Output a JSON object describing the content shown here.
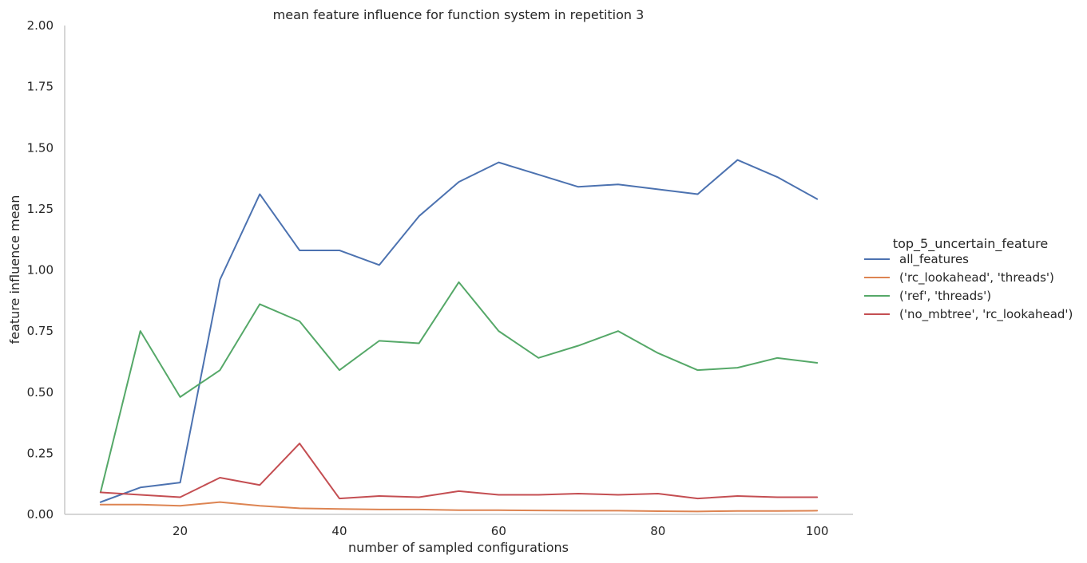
{
  "chart_data": {
    "type": "line",
    "title": "mean feature influence for function system in repetition 3",
    "xlabel": "number of sampled configurations",
    "ylabel": "feature influence mean",
    "xlim": [
      5.5,
      104.5
    ],
    "ylim": [
      0,
      2.0
    ],
    "x_ticks": [
      20,
      40,
      60,
      80,
      100
    ],
    "y_ticks": [
      0.0,
      0.25,
      0.5,
      0.75,
      1.0,
      1.25,
      1.5,
      1.75,
      2.0
    ],
    "y_tick_labels": [
      "0.00",
      "0.25",
      "0.50",
      "0.75",
      "1.00",
      "1.25",
      "1.50",
      "1.75",
      "2.00"
    ],
    "grid": false,
    "legend_title": "top_5_uncertain_feature",
    "legend_position": "right",
    "x": [
      10,
      15,
      20,
      25,
      30,
      35,
      40,
      45,
      50,
      55,
      60,
      65,
      70,
      75,
      80,
      85,
      90,
      95,
      100
    ],
    "series": [
      {
        "name": "all_features",
        "color": "#4c72b0",
        "values": [
          0.05,
          0.11,
          0.13,
          0.96,
          1.31,
          1.08,
          1.08,
          1.02,
          1.22,
          1.36,
          1.44,
          1.39,
          1.34,
          1.35,
          1.33,
          1.31,
          1.45,
          1.38,
          1.29
        ]
      },
      {
        "name": "('rc_lookahead', 'threads')",
        "color": "#dd8452",
        "values": [
          0.04,
          0.04,
          0.035,
          0.05,
          0.035,
          0.025,
          0.022,
          0.02,
          0.02,
          0.017,
          0.017,
          0.016,
          0.015,
          0.015,
          0.013,
          0.012,
          0.014,
          0.014,
          0.015
        ]
      },
      {
        "name": "('ref', 'threads')",
        "color": "#55a868",
        "values": [
          0.09,
          0.75,
          0.48,
          0.59,
          0.86,
          0.79,
          0.59,
          0.71,
          0.7,
          0.95,
          0.75,
          0.64,
          0.69,
          0.75,
          0.66,
          0.59,
          0.6,
          0.64,
          0.62
        ]
      },
      {
        "name": "('no_mbtree', 'rc_lookahead')",
        "color": "#c44e52",
        "values": [
          0.09,
          0.08,
          0.07,
          0.15,
          0.12,
          0.29,
          0.065,
          0.075,
          0.07,
          0.095,
          0.08,
          0.08,
          0.085,
          0.08,
          0.085,
          0.065,
          0.075,
          0.07,
          0.07
        ]
      }
    ]
  }
}
